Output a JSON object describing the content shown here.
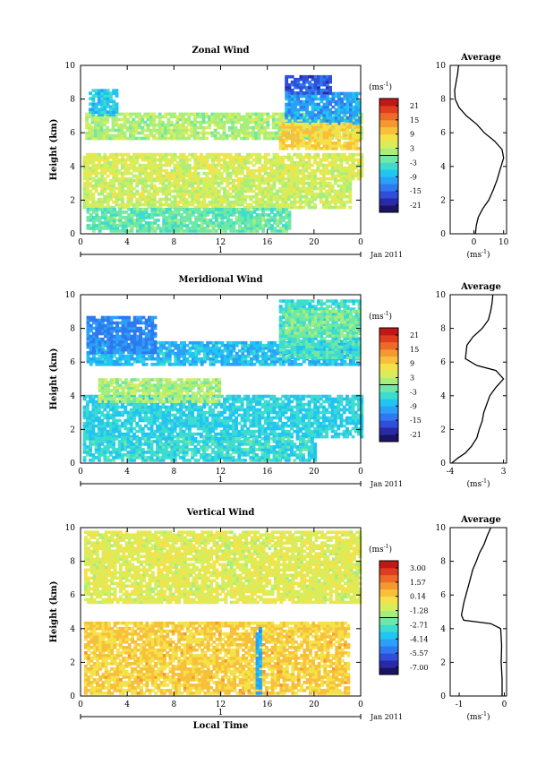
{
  "chart_data": [
    {
      "type": "heatmap",
      "title": "Zonal Wind",
      "xlabel": "",
      "ylabel": "Height (km)",
      "x_ticks": [
        "0",
        "4",
        "8",
        "12",
        "16",
        "20",
        "0"
      ],
      "xlim": [
        0,
        24
      ],
      "y_ticks": [
        "0",
        "2",
        "4",
        "6",
        "8",
        "10"
      ],
      "ylim": [
        0,
        10
      ],
      "day_label": "1",
      "date_label": "Jan 2011",
      "colorbar": {
        "unit": "(ms",
        "unit_sup": "-1",
        "unit_close": ")",
        "labels": [
          "21",
          "15",
          "9",
          "3",
          "-3",
          "-9",
          "-15",
          "-21"
        ],
        "range": [
          -24,
          24
        ]
      },
      "layers": [
        {
          "t0": 0.4,
          "t1": 24,
          "h0": 5.6,
          "h1": 7.2,
          "v": 2
        },
        {
          "t0": 0.7,
          "t1": 3.0,
          "h0": 7.0,
          "h1": 8.6,
          "v": -7
        },
        {
          "t0": 17.5,
          "t1": 24,
          "h0": 6.5,
          "h1": 8.4,
          "v": -10
        },
        {
          "t0": 17.5,
          "t1": 21.5,
          "h0": 8.3,
          "h1": 9.4,
          "v": -16
        },
        {
          "t0": 17.0,
          "t1": 24,
          "h0": 5.0,
          "h1": 6.6,
          "v": 9
        },
        {
          "t0": 0.2,
          "t1": 24,
          "h0": 3.2,
          "h1": 4.8,
          "v": 5
        },
        {
          "t0": 0.2,
          "t1": 23,
          "h0": 1.5,
          "h1": 3.2,
          "v": 4
        },
        {
          "t0": 0.5,
          "t1": 18,
          "h0": 0.1,
          "h1": 1.5,
          "v": -2
        }
      ],
      "average_profile": {
        "title": "Average",
        "xlabel": "(ms",
        "xlabel_sup": "-1",
        "xlabel_close": ")",
        "x_ticks": [
          "0",
          "10"
        ],
        "xlim": [
          -8,
          11
        ],
        "y_ticks": [
          "0",
          "2",
          "4",
          "6",
          "8",
          "10"
        ],
        "ylim": [
          0,
          10
        ],
        "points": [
          [
            0.5,
            0
          ],
          [
            0.8,
            0.5
          ],
          [
            1.5,
            1.0
          ],
          [
            3.0,
            1.5
          ],
          [
            5.0,
            2.0
          ],
          [
            6.5,
            2.6
          ],
          [
            7.8,
            3.2
          ],
          [
            8.8,
            3.8
          ],
          [
            10.0,
            4.5
          ],
          [
            9.5,
            5.0
          ],
          [
            7.0,
            5.5
          ],
          [
            3.5,
            6.0
          ],
          [
            1.0,
            6.5
          ],
          [
            -2.5,
            7.0
          ],
          [
            -5.0,
            7.5
          ],
          [
            -6.3,
            8.0
          ],
          [
            -6.5,
            8.5
          ],
          [
            -6.0,
            9.0
          ],
          [
            -5.5,
            9.5
          ],
          [
            -5.2,
            10
          ]
        ]
      }
    },
    {
      "type": "heatmap",
      "title": "Meridional Wind",
      "xlabel": "",
      "ylabel": "Height (km)",
      "x_ticks": [
        "0",
        "4",
        "8",
        "12",
        "16",
        "20",
        "0"
      ],
      "xlim": [
        0,
        24
      ],
      "y_ticks": [
        "0",
        "2",
        "4",
        "6",
        "8",
        "10"
      ],
      "ylim": [
        0,
        10
      ],
      "day_label": "1",
      "date_label": "Jan 2011",
      "colorbar": {
        "unit": "(ms",
        "unit_sup": "-1",
        "unit_close": ")",
        "labels": [
          "21",
          "15",
          "9",
          "3",
          "-3",
          "-9",
          "-15",
          "-21"
        ],
        "range": [
          -24,
          24
        ]
      },
      "layers": [
        {
          "t0": 0.5,
          "t1": 24,
          "h0": 5.8,
          "h1": 7.2,
          "v": -8
        },
        {
          "t0": 0.5,
          "t1": 6.5,
          "h0": 6.5,
          "h1": 8.6,
          "v": -12
        },
        {
          "t0": 17.0,
          "t1": 24,
          "h0": 6.2,
          "h1": 9.6,
          "v": -4
        },
        {
          "t0": 17.5,
          "t1": 24,
          "h0": 7.5,
          "h1": 9.0,
          "v": -1
        },
        {
          "t0": 0.2,
          "t1": 24,
          "h0": 1.5,
          "h1": 4.0,
          "v": -6
        },
        {
          "t0": 0.2,
          "t1": 20,
          "h0": 0.1,
          "h1": 1.5,
          "v": -5
        },
        {
          "t0": 1.5,
          "t1": 12,
          "h0": 3.6,
          "h1": 5.0,
          "v": 2
        }
      ],
      "average_profile": {
        "title": "Average",
        "xlabel": "(ms",
        "xlabel_sup": "-1",
        "xlabel_close": ")",
        "x_ticks": [
          "-4",
          "3"
        ],
        "xlim": [
          -4,
          3.4
        ],
        "y_ticks": [
          "0",
          "2",
          "4",
          "6",
          "8",
          "10"
        ],
        "ylim": [
          0,
          10
        ],
        "points": [
          [
            -3.8,
            0
          ],
          [
            -3.0,
            0.3
          ],
          [
            -2.0,
            0.6
          ],
          [
            -1.2,
            1.0
          ],
          [
            -0.5,
            1.5
          ],
          [
            -0.2,
            2.0
          ],
          [
            0.2,
            2.5
          ],
          [
            0.4,
            3.0
          ],
          [
            0.8,
            3.5
          ],
          [
            1.2,
            4.0
          ],
          [
            2.0,
            4.5
          ],
          [
            3.0,
            5.0
          ],
          [
            2.0,
            5.5
          ],
          [
            -0.5,
            5.8
          ],
          [
            -2.0,
            6.2
          ],
          [
            -1.8,
            7.0
          ],
          [
            -1.0,
            7.5
          ],
          [
            0.2,
            8.0
          ],
          [
            1.0,
            8.5
          ],
          [
            1.3,
            9.0
          ],
          [
            1.5,
            9.5
          ],
          [
            1.6,
            10
          ]
        ]
      }
    },
    {
      "type": "heatmap",
      "title": "Vertical Wind",
      "xlabel": "Local Time",
      "ylabel": "Height (km)",
      "x_ticks": [
        "0",
        "4",
        "8",
        "12",
        "16",
        "20",
        "0"
      ],
      "xlim": [
        0,
        24
      ],
      "y_ticks": [
        "0",
        "2",
        "4",
        "6",
        "8",
        "10"
      ],
      "ylim": [
        0,
        10
      ],
      "day_label": "1",
      "date_label": "Jan 2011",
      "colorbar": {
        "unit": "(ms",
        "unit_sup": "-1",
        "unit_close": ")",
        "labels": [
          "3.00",
          "1.57",
          "0.14",
          "-1.28",
          "-2.71",
          "-4.14",
          "-5.57",
          "-7.00"
        ],
        "range": [
          -7.7,
          3.7
        ]
      },
      "layers": [
        {
          "t0": 0.3,
          "t1": 24,
          "h0": 5.5,
          "h1": 9.8,
          "v": -0.7
        },
        {
          "t0": 0.3,
          "t1": 23,
          "h0": 0.1,
          "h1": 4.3,
          "v": 0.2
        },
        {
          "t0": 15.0,
          "t1": 15.4,
          "h0": 0.1,
          "h1": 4.0,
          "v": -4.2
        }
      ],
      "average_profile": {
        "title": "Average",
        "xlabel": "(ms",
        "xlabel_sup": "-1",
        "xlabel_close": ")",
        "x_ticks": [
          "-1",
          "0"
        ],
        "xlim": [
          -1.2,
          0.05
        ],
        "y_ticks": [
          "0",
          "2",
          "4",
          "6",
          "8",
          "10"
        ],
        "ylim": [
          0,
          10
        ],
        "points": [
          [
            -0.05,
            0
          ],
          [
            -0.05,
            1.0
          ],
          [
            -0.07,
            2.0
          ],
          [
            -0.06,
            3.0
          ],
          [
            -0.08,
            4.0
          ],
          [
            -0.3,
            4.3
          ],
          [
            -0.9,
            4.5
          ],
          [
            -0.95,
            4.8
          ],
          [
            -0.9,
            5.5
          ],
          [
            -0.85,
            6.0
          ],
          [
            -0.8,
            6.5
          ],
          [
            -0.75,
            7.0
          ],
          [
            -0.7,
            7.5
          ],
          [
            -0.62,
            8.0
          ],
          [
            -0.55,
            8.5
          ],
          [
            -0.45,
            9.0
          ],
          [
            -0.38,
            9.5
          ],
          [
            -0.3,
            10
          ]
        ]
      }
    }
  ]
}
